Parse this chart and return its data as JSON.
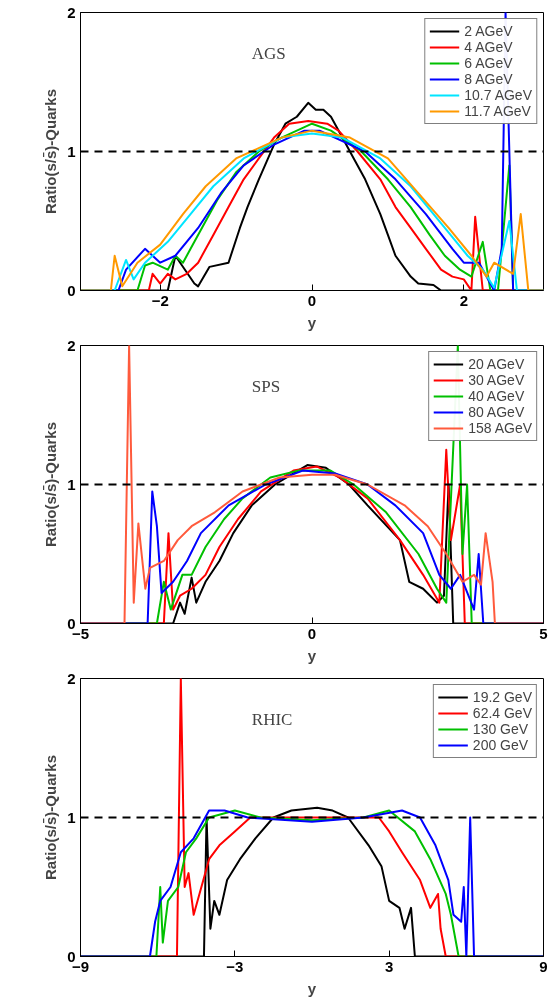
{
  "chart_data": [
    {
      "type": "line",
      "annotations": [
        "AGS"
      ],
      "xlabel": "y",
      "ylabel": "Ratio(s/s̄)-Quarks",
      "xlim": [
        -3.05,
        3.05
      ],
      "ylim": [
        0,
        2
      ],
      "xticks": [
        -2,
        0,
        2
      ],
      "yticks": [
        0,
        1,
        2
      ],
      "grid": false,
      "legend": "top right",
      "marker": "none",
      "line_style": "solid",
      "ref_lines": [
        {
          "axis": "y",
          "value": 1,
          "color": "#000000",
          "line_style": "dashed"
        }
      ],
      "series": [
        {
          "name": "2 AGeV",
          "color": "#000000",
          "x": [
            -3.05,
            -1.9,
            -1.8,
            -1.55,
            -1.5,
            -1.35,
            -1.1,
            -0.95,
            -0.85,
            -0.7,
            -0.5,
            -0.35,
            -0.2,
            -0.05,
            0.05,
            0.15,
            0.25,
            0.4,
            0.55,
            0.7,
            0.9,
            1.0,
            1.1,
            1.3,
            1.4,
            1.6,
            1.7,
            3.05
          ],
          "values": [
            0,
            0,
            0.25,
            0.05,
            0.03,
            0.17,
            0.2,
            0.45,
            0.6,
            0.8,
            1.05,
            1.2,
            1.25,
            1.35,
            1.3,
            1.3,
            1.25,
            1.1,
            0.95,
            0.8,
            0.55,
            0.4,
            0.25,
            0.1,
            0.05,
            0.04,
            0,
            0
          ]
        },
        {
          "name": "4 AGeV",
          "color": "#ff0000",
          "x": [
            -3.05,
            -2.15,
            -2.1,
            -2.0,
            -1.9,
            -1.8,
            -1.65,
            -1.5,
            -1.3,
            -1.1,
            -0.9,
            -0.7,
            -0.5,
            -0.3,
            -0.05,
            0.2,
            0.35,
            0.6,
            0.9,
            1.1,
            1.3,
            1.5,
            1.7,
            1.85,
            2.0,
            2.1,
            2.15,
            2.25,
            3.05
          ],
          "values": [
            0,
            0,
            0.12,
            0.05,
            0.12,
            0.08,
            0.12,
            0.2,
            0.4,
            0.6,
            0.8,
            0.95,
            1.1,
            1.2,
            1.22,
            1.2,
            1.15,
            1.0,
            0.8,
            0.6,
            0.45,
            0.3,
            0.15,
            0.1,
            0.08,
            0,
            0.53,
            0,
            0
          ]
        },
        {
          "name": "6 AGeV",
          "color": "#00c000",
          "x": [
            -3.05,
            -2.3,
            -2.2,
            -2.1,
            -1.9,
            -1.8,
            -1.7,
            -1.6,
            -1.4,
            -1.25,
            -1.0,
            -0.7,
            -0.4,
            -0.2,
            0,
            0.25,
            0.65,
            1.0,
            1.3,
            1.55,
            1.75,
            1.95,
            2.1,
            2.25,
            2.35,
            2.45,
            2.6,
            2.65,
            3.05
          ],
          "values": [
            0,
            0,
            0.18,
            0.2,
            0.15,
            0.25,
            0.2,
            0.3,
            0.5,
            0.65,
            0.85,
            1.0,
            1.1,
            1.15,
            1.2,
            1.15,
            1.0,
            0.8,
            0.6,
            0.4,
            0.25,
            0.15,
            0.1,
            0.35,
            0,
            0,
            0.9,
            0,
            0
          ]
        },
        {
          "name": "8 AGeV",
          "color": "#0000ff",
          "x": [
            -3.05,
            -2.55,
            -2.45,
            -2.2,
            -2.0,
            -1.8,
            -1.5,
            -1.2,
            -0.9,
            -0.5,
            -0.1,
            0.1,
            0.7,
            1.1,
            1.5,
            1.85,
            2.0,
            2.2,
            2.4,
            2.5,
            2.55,
            2.65,
            3.05
          ],
          "values": [
            0,
            0,
            0.15,
            0.3,
            0.2,
            0.25,
            0.45,
            0.7,
            0.9,
            1.05,
            1.15,
            1.15,
            1.0,
            0.8,
            0.55,
            0.3,
            0.2,
            0.2,
            0,
            0.3,
            2.0,
            0,
            0
          ]
        },
        {
          "name": "10.7 AGeV",
          "color": "#00e5ff",
          "x": [
            -3.05,
            -2.6,
            -2.45,
            -2.35,
            -2.2,
            -1.9,
            -1.6,
            -1.3,
            -0.9,
            -0.4,
            0,
            0.4,
            0.9,
            1.3,
            1.75,
            2.05,
            2.25,
            2.4,
            2.6,
            2.7,
            3.05
          ],
          "values": [
            0,
            0,
            0.22,
            0.08,
            0.2,
            0.35,
            0.55,
            0.75,
            0.95,
            1.1,
            1.13,
            1.1,
            0.95,
            0.75,
            0.45,
            0.25,
            0.15,
            0.02,
            0.5,
            0,
            0
          ]
        },
        {
          "name": "11.7 AGeV",
          "color": "#ff9900",
          "x": [
            -3.05,
            -2.65,
            -2.6,
            -2.5,
            -2.3,
            -2.0,
            -1.7,
            -1.4,
            -1.0,
            -0.4,
            0,
            0.5,
            1.0,
            1.4,
            1.8,
            2.1,
            2.3,
            2.4,
            2.65,
            2.75,
            2.85,
            3.05
          ],
          "values": [
            0,
            0,
            0.25,
            0.03,
            0.2,
            0.33,
            0.55,
            0.75,
            0.95,
            1.1,
            1.15,
            1.1,
            0.95,
            0.7,
            0.45,
            0.25,
            0.1,
            0.2,
            0.12,
            0.55,
            0,
            0
          ]
        }
      ]
    },
    {
      "type": "line",
      "annotations": [
        "SPS"
      ],
      "xlabel": "y",
      "ylabel": "Ratio(s/s̄)-Quarks",
      "xlim": [
        -5,
        5
      ],
      "ylim": [
        0,
        2
      ],
      "xticks": [
        -5,
        0,
        5
      ],
      "yticks": [
        0,
        1,
        2
      ],
      "grid": false,
      "legend": "top right",
      "marker": "none",
      "line_style": "solid",
      "ref_lines": [
        {
          "axis": "y",
          "value": 1,
          "color": "#000000",
          "line_style": "dashed"
        }
      ],
      "series": [
        {
          "name": "20 AGeV",
          "color": "#000000",
          "x": [
            -5,
            -3.0,
            -2.85,
            -2.75,
            -2.6,
            -2.5,
            -2.3,
            -2.0,
            -1.7,
            -1.3,
            -0.8,
            -0.3,
            -0.1,
            0.3,
            0.8,
            1.2,
            1.9,
            2.1,
            2.4,
            2.7,
            2.85,
            2.95,
            3.05,
            5
          ],
          "values": [
            0,
            0,
            0.15,
            0.07,
            0.33,
            0.15,
            0.3,
            0.45,
            0.65,
            0.85,
            1.0,
            1.1,
            1.14,
            1.12,
            1.0,
            0.85,
            0.6,
            0.3,
            0.25,
            0.15,
            0.2,
            1.0,
            0,
            0
          ]
        },
        {
          "name": "30 AGeV",
          "color": "#ff0000",
          "x": [
            -5,
            -3.2,
            -3.1,
            -3.0,
            -2.85,
            -2.6,
            -2.3,
            -2.0,
            -1.6,
            -1.1,
            -0.4,
            0.1,
            0.6,
            1.2,
            1.9,
            2.4,
            2.75,
            2.9,
            3.0,
            3.2,
            3.3,
            5
          ],
          "values": [
            0,
            0,
            0.65,
            0.1,
            0.2,
            0.25,
            0.35,
            0.55,
            0.75,
            0.95,
            1.1,
            1.13,
            1.05,
            0.9,
            0.6,
            0.35,
            0.15,
            1.25,
            0.6,
            1.0,
            0,
            0
          ]
        },
        {
          "name": "40 AGeV",
          "color": "#00c000",
          "x": [
            -5,
            -3.35,
            -3.2,
            -3.05,
            -2.8,
            -2.6,
            -2.3,
            -1.9,
            -1.5,
            -0.9,
            -0.3,
            0.4,
            0.9,
            1.6,
            2.3,
            2.7,
            2.9,
            3.15,
            3.25,
            3.35,
            3.45,
            5
          ],
          "values": [
            0,
            0,
            0.3,
            0.1,
            0.35,
            0.35,
            0.55,
            0.75,
            0.9,
            1.05,
            1.1,
            1.1,
            1.0,
            0.8,
            0.5,
            0.25,
            0.15,
            2.0,
            0.5,
            1.0,
            0,
            0
          ]
        },
        {
          "name": "80 AGeV",
          "color": "#0000ff",
          "x": [
            -5,
            -3.55,
            -3.45,
            -3.35,
            -3.25,
            -3.0,
            -2.7,
            -2.4,
            -1.8,
            -1.0,
            -0.2,
            0.5,
            1.2,
            1.8,
            2.4,
            2.75,
            3.0,
            3.2,
            3.5,
            3.6,
            3.7,
            5
          ],
          "values": [
            0,
            0,
            0.95,
            0.7,
            0.22,
            0.3,
            0.45,
            0.65,
            0.85,
            1.0,
            1.1,
            1.08,
            1.0,
            0.85,
            0.65,
            0.35,
            0.25,
            0.35,
            0.1,
            0.5,
            0,
            0
          ]
        },
        {
          "name": "158 AGeV",
          "color": "#ff5a3c",
          "x": [
            -5,
            -4.05,
            -3.95,
            -3.85,
            -3.75,
            -3.6,
            -3.5,
            -3.2,
            -2.9,
            -2.6,
            -2.1,
            -1.5,
            -0.7,
            0,
            0.5,
            1.2,
            2.0,
            2.5,
            2.9,
            3.25,
            3.5,
            3.65,
            3.75,
            3.9,
            3.95,
            5
          ],
          "values": [
            0,
            0,
            2.0,
            0.15,
            0.72,
            0.25,
            0.4,
            0.45,
            0.6,
            0.7,
            0.8,
            0.95,
            1.05,
            1.07,
            1.07,
            1.0,
            0.85,
            0.7,
            0.5,
            0.3,
            0.35,
            0.28,
            0.65,
            0.3,
            0,
            0
          ]
        }
      ]
    },
    {
      "type": "line",
      "annotations": [
        "RHIC"
      ],
      "xlabel": "y",
      "ylabel": "Ratio(s/s̄)-Quarks",
      "xlim": [
        -9,
        9
      ],
      "ylim": [
        0,
        2
      ],
      "xticks": [
        -9,
        -3,
        3,
        9
      ],
      "yticks": [
        0,
        1,
        2
      ],
      "grid": false,
      "legend": "top right",
      "marker": "none",
      "line_style": "solid",
      "ref_lines": [
        {
          "axis": "y",
          "value": 1,
          "color": "#000000",
          "line_style": "dashed"
        }
      ],
      "series": [
        {
          "name": "19.2 GeV",
          "color": "#000000",
          "x": [
            -9,
            -4.2,
            -4.1,
            -3.95,
            -3.8,
            -3.6,
            -3.3,
            -2.8,
            -2.2,
            -1.5,
            -0.8,
            0.2,
            0.8,
            1.4,
            2.2,
            2.7,
            3.0,
            3.4,
            3.6,
            3.85,
            4.0,
            9
          ],
          "values": [
            0,
            0,
            1.0,
            0.2,
            0.4,
            0.3,
            0.55,
            0.7,
            0.85,
            1.0,
            1.05,
            1.07,
            1.05,
            1.0,
            0.8,
            0.65,
            0.4,
            0.35,
            0.2,
            0.35,
            0,
            0
          ]
        },
        {
          "name": "62.4 GeV",
          "color": "#ff0000",
          "x": [
            -9,
            -5.25,
            -5.1,
            -4.95,
            -4.8,
            -4.6,
            -4.3,
            -4.0,
            -3.6,
            -3.0,
            -2.4,
            -1.0,
            1.5,
            2.6,
            3.0,
            3.5,
            4.2,
            4.6,
            4.9,
            5.0,
            5.2,
            9
          ],
          "values": [
            0,
            0,
            2.0,
            0.5,
            0.6,
            0.3,
            0.5,
            0.7,
            0.8,
            0.9,
            1.0,
            1.0,
            1.0,
            1.0,
            0.9,
            0.75,
            0.55,
            0.35,
            0.45,
            0.2,
            0,
            0
          ]
        },
        {
          "name": "130 GeV",
          "color": "#00c000",
          "x": [
            -9,
            -6.05,
            -5.9,
            -5.8,
            -5.6,
            -5.2,
            -4.9,
            -4.5,
            -4.0,
            -3.0,
            -2.0,
            0,
            2.0,
            3.0,
            4.0,
            4.6,
            5.2,
            5.4,
            5.7,
            9
          ],
          "values": [
            0,
            0,
            0.5,
            0.1,
            0.4,
            0.5,
            0.75,
            0.85,
            1.0,
            1.05,
            1.0,
            0.98,
            1.0,
            1.05,
            0.9,
            0.7,
            0.45,
            0.3,
            0,
            0
          ]
        },
        {
          "name": "200 GeV",
          "color": "#0000ff",
          "x": [
            -9,
            -6.3,
            -6.1,
            -5.9,
            -5.5,
            -5.1,
            -4.6,
            -4.0,
            -3.4,
            -2.5,
            0,
            2.0,
            3.5,
            4.2,
            4.8,
            5.3,
            5.5,
            5.8,
            5.9,
            6.0,
            6.15,
            6.3,
            9
          ],
          "values": [
            0,
            0,
            0.25,
            0.4,
            0.5,
            0.75,
            0.85,
            1.05,
            1.05,
            1.0,
            0.97,
            1.0,
            1.05,
            1.0,
            0.8,
            0.55,
            0.3,
            0.25,
            0.5,
            0,
            1.0,
            0,
            0
          ]
        }
      ]
    }
  ]
}
